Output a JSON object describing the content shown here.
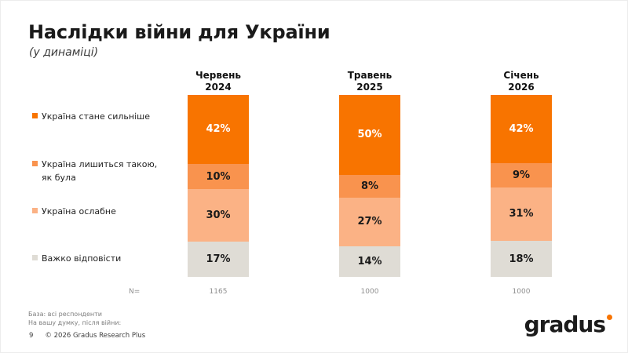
{
  "slide": {
    "title": "Наслідки війни для України",
    "subtitle": "(у динаміці)",
    "n_label": "N=",
    "base_note_line1": "База: всі респонденти",
    "base_note_line2": "На вашу думку, після війни:",
    "page_number": "9",
    "copyright": "© 2026 Gradus Research Plus",
    "logo_text": "gradus"
  },
  "colors": {
    "brand_orange": "#f87400",
    "title_text": "#1a1a1a",
    "muted_text": "#8f8f8f"
  },
  "chart_data": {
    "type": "bar",
    "variant": "stacked-100-vertical",
    "title": "Наслідки війни для України (у динаміці)",
    "categories": [
      "Червень 2024",
      "Травень 2025",
      "Січень 2026"
    ],
    "n_values": [
      "1165",
      "1000",
      "1000"
    ],
    "value_suffix": "%",
    "legend_position": "left",
    "series": [
      {
        "name": "Україна стане сильніше",
        "color": "#f87400",
        "label_color": "#ffffff",
        "values": [
          42,
          50,
          42
        ]
      },
      {
        "name": "Україна лишиться такою, як була",
        "color": "#f9934e",
        "label_color": "#1a1a1a",
        "values": [
          10,
          8,
          9
        ]
      },
      {
        "name": "Україна ослабне",
        "color": "#fbb285",
        "label_color": "#1a1a1a",
        "values": [
          30,
          27,
          31
        ]
      },
      {
        "name": "Важко відповісти",
        "color": "#dfdcd5",
        "label_color": "#1a1a1a",
        "values": [
          17,
          14,
          18
        ]
      }
    ]
  }
}
